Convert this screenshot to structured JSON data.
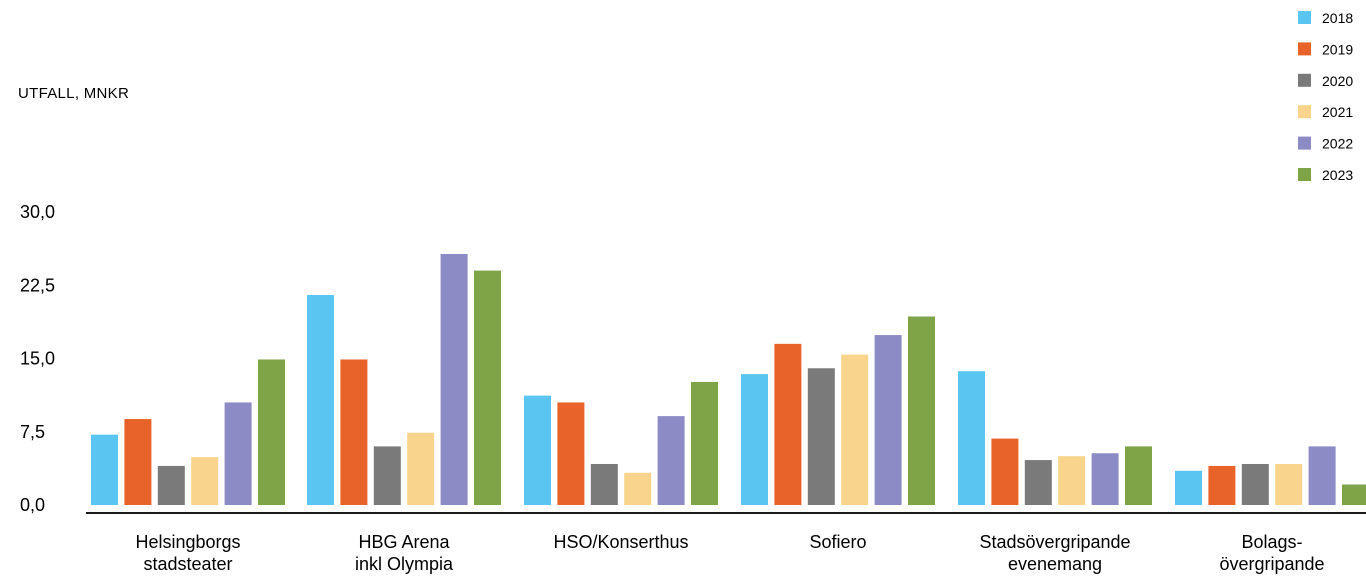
{
  "chart_data": {
    "type": "bar",
    "title": "",
    "xlabel": "",
    "ylabel": "UTFALL, MNKR",
    "ylim": [
      0,
      30
    ],
    "yticks": [
      "0,0",
      "7,5",
      "15,0",
      "22,5",
      "30,0"
    ],
    "ytick_values": [
      0,
      7.5,
      15,
      22.5,
      30
    ],
    "grid": false,
    "legend_position": "top-right",
    "categories": [
      [
        "Helsingborgs",
        "stadsteater"
      ],
      [
        "HBG Arena",
        "inkl Olympia"
      ],
      [
        "HSO/Konserthus"
      ],
      [
        "Sofiero"
      ],
      [
        "Stadsövergripande",
        "evenemang"
      ],
      [
        "Bolags-",
        "övergripande"
      ]
    ],
    "series": [
      {
        "name": "2018",
        "color": "#5bc5f2",
        "values": [
          7.2,
          21.5,
          11.2,
          13.4,
          13.7,
          3.5
        ]
      },
      {
        "name": "2019",
        "color": "#e8632a",
        "values": [
          8.8,
          14.9,
          10.5,
          16.5,
          6.8,
          4.0
        ]
      },
      {
        "name": "2020",
        "color": "#7a7a7a",
        "values": [
          4.0,
          6.0,
          4.2,
          14.0,
          4.6,
          4.2
        ]
      },
      {
        "name": "2021",
        "color": "#f9d48c",
        "values": [
          4.9,
          7.4,
          3.3,
          15.4,
          5.0,
          4.2
        ]
      },
      {
        "name": "2022",
        "color": "#8d8bc6",
        "values": [
          10.5,
          25.7,
          9.1,
          17.4,
          5.3,
          6.0
        ]
      },
      {
        "name": "2023",
        "color": "#7fa347",
        "values": [
          14.9,
          24.0,
          12.6,
          19.3,
          6.0,
          2.1
        ]
      }
    ]
  }
}
